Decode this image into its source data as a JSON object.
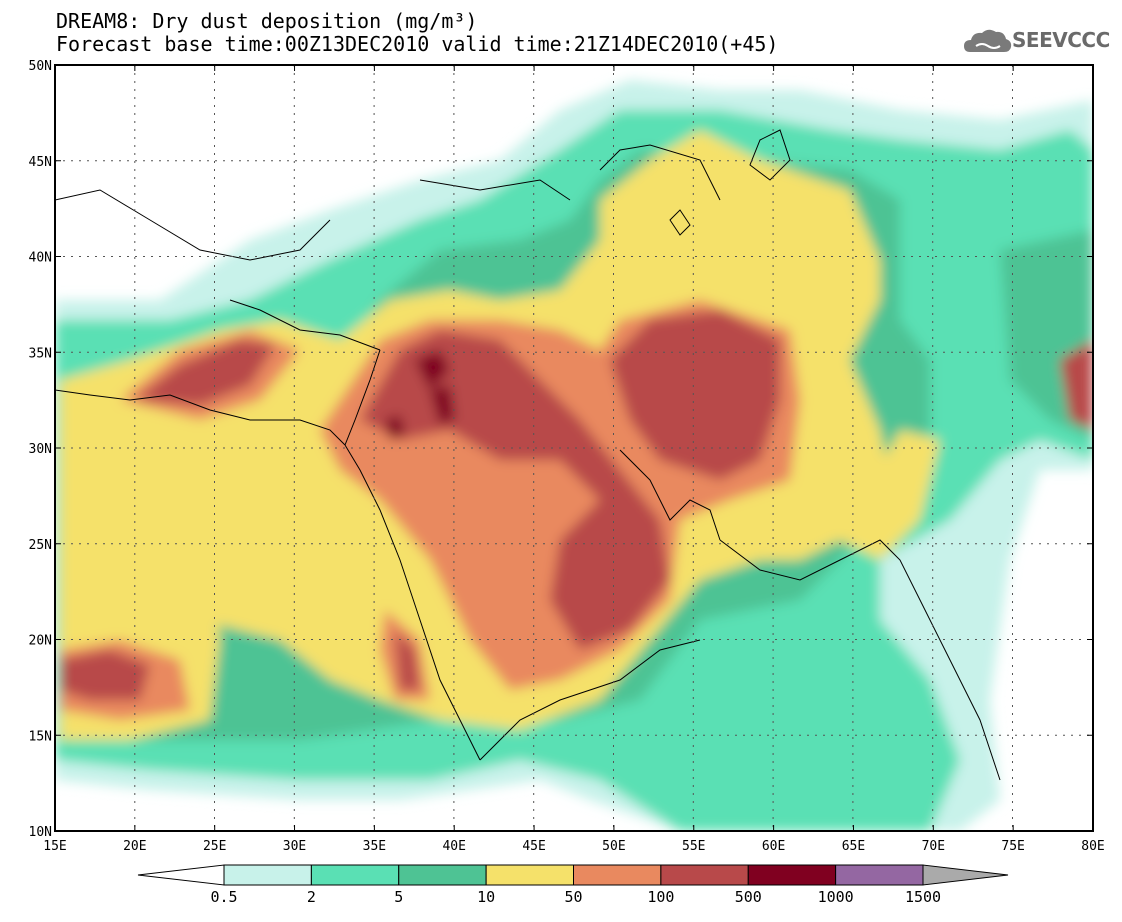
{
  "title": {
    "line1": "DREAM8: Dry dust deposition (mg/m³)",
    "line2": "Forecast base time:00Z13DEC2010 valid time:21Z14DEC2010(+45)"
  },
  "logo": {
    "text": "SEEVCCC",
    "icon": "cloud-icon"
  },
  "map": {
    "lon_range": [
      15,
      80
    ],
    "lat_range": [
      10,
      50
    ],
    "lon_ticks": [
      "15E",
      "20E",
      "25E",
      "30E",
      "35E",
      "40E",
      "45E",
      "50E",
      "55E",
      "60E",
      "65E",
      "70E",
      "75E",
      "80E"
    ],
    "lat_ticks": [
      "10N",
      "15N",
      "20N",
      "25N",
      "30N",
      "35N",
      "40N",
      "45N",
      "50N"
    ],
    "grid": "dotted"
  },
  "colorbar": {
    "labels": [
      "0.5",
      "2",
      "5",
      "10",
      "50",
      "100",
      "500",
      "1000",
      "1500"
    ],
    "colors": [
      "#c8f2ea",
      "#5ae0b4",
      "#4ec394",
      "#f5e16a",
      "#e9895f",
      "#b8494a",
      "#800020",
      "#9467a2"
    ],
    "under_color": "#ffffff",
    "over_color": "#aaaaaa"
  }
}
